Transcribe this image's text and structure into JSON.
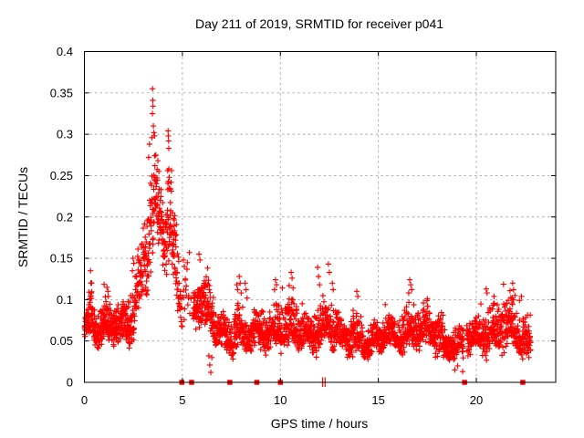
{
  "colors": {
    "marker": "#ff0000",
    "grid": "#a8a8a8",
    "border": "#000000",
    "text": "#000000",
    "background": "#ffffff"
  },
  "chart_data": {
    "type": "scatter",
    "title": "Day 211 of 2019, SRMTID for receiver p041",
    "xlabel": "GPS time / hours",
    "ylabel": "SRMTID / TECUs",
    "xlim": [
      0,
      24.05
    ],
    "ylim": [
      0,
      0.4
    ],
    "xticks": [
      0,
      5,
      10,
      15,
      20
    ],
    "xtick_labels": [
      "0",
      "5",
      "10",
      "15",
      "20"
    ],
    "yticks": [
      0,
      0.05,
      0.1,
      0.15,
      0.2,
      0.25,
      0.3,
      0.35,
      0.4
    ],
    "ytick_labels": [
      "0",
      "0.05",
      "0.1",
      "0.15",
      "0.2",
      "0.25",
      "0.3",
      "0.35",
      "0.4"
    ],
    "grid": true,
    "grid_style": "dashed",
    "legend": "none",
    "marker": "plus",
    "gap_marker": "filled-square-on-axis",
    "description": "Dense high-rate scatter of slant TID amplitude. Quiet band ~0.04-0.11 TECU from 0-2.5 h, main peak rising after 2.5 h to a maximum of ~0.355 TECU near 3.5 h with secondary spike ~0.30 at 4.3 h, decay through 5 h, short data gaps near 5.0, 5.5, 7.4, 8.8, 10.0, 12.2, 19.4 and 22.4 h (red squares/ticks on axis), then fluctuating 0.03-0.14 TECU band until data ends ~22.8 h.",
    "max_point": {
      "x": 3.48,
      "y": 0.355
    },
    "points_per_hour": 125,
    "seed": 2019211,
    "gap_square_hours": [
      4.97,
      5.47,
      7.42,
      8.8,
      10.0,
      19.4,
      22.37
    ],
    "gap_tick_hours": [
      12.16,
      12.28
    ],
    "band_segments": [
      [
        0.0,
        0.3,
        0.062,
        0.068,
        0.02,
        1.2
      ],
      [
        0.3,
        0.45,
        0.08,
        0.072,
        0.03,
        1.2
      ],
      [
        0.45,
        1.0,
        0.066,
        0.068,
        0.022,
        1.2
      ],
      [
        1.0,
        1.45,
        0.075,
        0.072,
        0.025,
        1.2
      ],
      [
        1.45,
        2.0,
        0.068,
        0.06,
        0.022,
        1.2
      ],
      [
        2.0,
        2.35,
        0.058,
        0.065,
        0.026,
        1.2
      ],
      [
        2.35,
        2.7,
        0.075,
        0.095,
        0.033,
        1
      ],
      [
        2.7,
        3.0,
        0.105,
        0.14,
        0.038,
        1
      ],
      [
        3.0,
        3.3,
        0.15,
        0.185,
        0.048,
        1
      ],
      [
        3.3,
        3.65,
        0.195,
        0.21,
        0.055,
        1
      ],
      [
        3.65,
        4.0,
        0.205,
        0.185,
        0.042,
        1
      ],
      [
        4.0,
        4.2,
        0.175,
        0.165,
        0.038,
        1
      ],
      [
        4.2,
        4.45,
        0.185,
        0.175,
        0.048,
        1
      ],
      [
        4.45,
        4.75,
        0.15,
        0.125,
        0.038,
        1
      ],
      [
        4.75,
        4.95,
        0.115,
        0.1,
        0.035,
        0.8
      ],
      [
        4.95,
        5.4,
        0.095,
        0.09,
        0.05,
        0.3
      ],
      [
        5.4,
        5.55,
        0.09,
        0.09,
        0.03,
        0.1
      ],
      [
        5.55,
        6.15,
        0.105,
        0.092,
        0.03,
        1.1
      ],
      [
        6.15,
        6.6,
        0.08,
        0.073,
        0.028,
        1
      ],
      [
        6.6,
        7.3,
        0.062,
        0.058,
        0.021,
        1
      ],
      [
        7.3,
        7.75,
        0.056,
        0.06,
        0.022,
        1
      ],
      [
        7.75,
        8.1,
        0.064,
        0.06,
        0.026,
        1
      ],
      [
        8.1,
        9.0,
        0.054,
        0.054,
        0.021,
        1
      ],
      [
        9.0,
        9.65,
        0.06,
        0.064,
        0.022,
        1
      ],
      [
        9.65,
        10.25,
        0.068,
        0.066,
        0.027,
        1
      ],
      [
        10.25,
        11.0,
        0.064,
        0.059,
        0.025,
        1
      ],
      [
        11.0,
        11.7,
        0.057,
        0.057,
        0.021,
        1
      ],
      [
        11.7,
        12.22,
        0.064,
        0.067,
        0.027,
        1
      ],
      [
        12.22,
        13.0,
        0.066,
        0.06,
        0.027,
        1
      ],
      [
        13.0,
        13.6,
        0.05,
        0.049,
        0.019,
        1
      ],
      [
        13.6,
        14.2,
        0.057,
        0.054,
        0.021,
        1
      ],
      [
        14.2,
        15.2,
        0.048,
        0.046,
        0.017,
        1
      ],
      [
        15.2,
        16.2,
        0.056,
        0.058,
        0.019,
        1
      ],
      [
        16.2,
        17.05,
        0.062,
        0.064,
        0.024,
        1
      ],
      [
        17.05,
        18.3,
        0.06,
        0.056,
        0.022,
        1
      ],
      [
        18.3,
        19.35,
        0.045,
        0.041,
        0.017,
        1
      ],
      [
        19.5,
        20.2,
        0.051,
        0.056,
        0.019,
        1
      ],
      [
        20.2,
        21.2,
        0.062,
        0.064,
        0.025,
        1
      ],
      [
        21.2,
        22.05,
        0.062,
        0.063,
        0.028,
        1
      ],
      [
        22.05,
        22.78,
        0.058,
        0.048,
        0.024,
        1
      ]
    ],
    "outliers": [
      [
        0.28,
        0.101
      ],
      [
        0.31,
        0.135
      ],
      [
        0.33,
        0.12
      ],
      [
        0.35,
        0.108
      ],
      [
        1.15,
        0.115
      ],
      [
        1.2,
        0.11
      ],
      [
        1.22,
        0.104
      ],
      [
        2.45,
        0.135
      ],
      [
        2.48,
        0.15
      ],
      [
        2.52,
        0.144
      ],
      [
        3.28,
        0.272
      ],
      [
        3.32,
        0.288
      ],
      [
        3.44,
        0.296
      ],
      [
        3.47,
        0.325
      ],
      [
        3.48,
        0.355
      ],
      [
        3.49,
        0.341
      ],
      [
        3.5,
        0.334
      ],
      [
        3.52,
        0.31
      ],
      [
        3.55,
        0.302
      ],
      [
        3.58,
        0.298
      ],
      [
        3.6,
        0.262
      ],
      [
        3.75,
        0.268
      ],
      [
        3.8,
        0.255
      ],
      [
        4.25,
        0.256
      ],
      [
        4.27,
        0.304
      ],
      [
        4.28,
        0.298
      ],
      [
        4.3,
        0.292
      ],
      [
        4.31,
        0.258
      ],
      [
        4.33,
        0.248
      ],
      [
        4.5,
        0.205
      ],
      [
        4.55,
        0.198
      ],
      [
        5.05,
        0.148
      ],
      [
        5.1,
        0.14
      ],
      [
        5.15,
        0.125
      ],
      [
        5.2,
        0.105
      ],
      [
        5.85,
        0.155
      ],
      [
        5.9,
        0.148
      ],
      [
        6.35,
        0.032
      ],
      [
        6.4,
        0.021
      ],
      [
        6.45,
        0.012
      ],
      [
        6.5,
        0.03
      ],
      [
        7.78,
        0.118
      ],
      [
        7.82,
        0.112
      ],
      [
        7.9,
        0.128
      ],
      [
        7.95,
        0.12
      ],
      [
        8.0,
        0.108
      ],
      [
        8.2,
        0.12
      ],
      [
        8.25,
        0.112
      ],
      [
        8.3,
        0.102
      ],
      [
        9.7,
        0.112
      ],
      [
        9.75,
        0.124
      ],
      [
        9.8,
        0.118
      ],
      [
        10.1,
        0.114
      ],
      [
        10.45,
        0.117
      ],
      [
        10.55,
        0.133
      ],
      [
        10.6,
        0.126
      ],
      [
        10.65,
        0.114
      ],
      [
        11.9,
        0.139
      ],
      [
        11.95,
        0.128
      ],
      [
        12.0,
        0.118
      ],
      [
        12.45,
        0.143
      ],
      [
        12.5,
        0.133
      ],
      [
        12.65,
        0.12
      ],
      [
        12.7,
        0.112
      ],
      [
        13.9,
        0.11
      ],
      [
        13.95,
        0.104
      ],
      [
        15.35,
        0.094
      ],
      [
        16.55,
        0.108
      ],
      [
        16.6,
        0.124
      ],
      [
        16.65,
        0.118
      ],
      [
        16.7,
        0.112
      ],
      [
        17.3,
        0.096
      ],
      [
        17.5,
        0.101
      ],
      [
        18.9,
        0.015
      ],
      [
        19.05,
        0.02
      ],
      [
        19.3,
        0.013
      ],
      [
        20.5,
        0.113
      ],
      [
        20.55,
        0.108
      ],
      [
        20.9,
        0.104
      ],
      [
        21.85,
        0.12
      ],
      [
        21.9,
        0.112
      ],
      [
        21.97,
        0.105
      ],
      [
        22.2,
        0.099
      ],
      [
        22.3,
        0.104
      ],
      [
        22.6,
        0.036
      ],
      [
        22.68,
        0.03
      ]
    ]
  }
}
